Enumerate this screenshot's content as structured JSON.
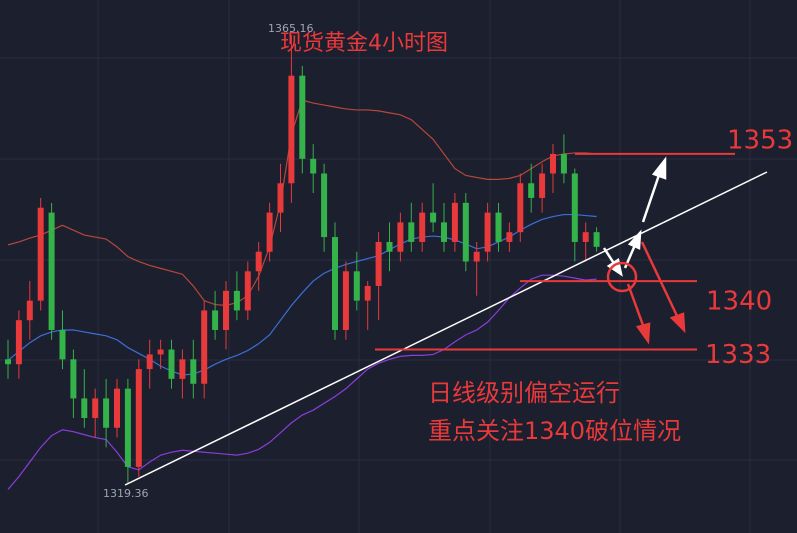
{
  "chart_data": {
    "type": "candlestick",
    "title": "现货黄金4小时图",
    "up_color": "#e8393b",
    "down_color": "#33b34a",
    "ylim": [
      1314.24,
      1368.74
    ],
    "open": [
      1332,
      1331.5,
      1336,
      1338,
      1347,
      1335,
      1332,
      1328,
      1326,
      1328,
      1325,
      1329,
      1321,
      1331,
      1332.5,
      1333,
      1330,
      1332,
      1329.5,
      1337,
      1335,
      1339,
      1337,
      1341,
      1343,
      1347,
      1350,
      1361,
      1352.5,
      1351,
      1344.5,
      1335,
      1341,
      1338,
      1339.5,
      1344,
      1343,
      1346,
      1344,
      1347,
      1346,
      1344,
      1348,
      1342,
      1343,
      1347,
      1344,
      1345,
      1350,
      1348.5,
      1351,
      1353,
      1351,
      1344,
      1345
    ],
    "high": [
      1334,
      1337,
      1340,
      1348.5,
      1348,
      1337,
      1333,
      1331,
      1329,
      1330,
      1330,
      1330,
      1332,
      1334,
      1334,
      1334,
      1333,
      1334,
      1338,
      1339,
      1340,
      1341,
      1342,
      1344,
      1348,
      1352,
      1365.16,
      1362,
      1354,
      1352,
      1346,
      1342,
      1343,
      1340,
      1345,
      1346,
      1347,
      1348,
      1348,
      1350,
      1348,
      1349,
      1349,
      1344,
      1348,
      1348,
      1346,
      1351,
      1352,
      1352,
      1354,
      1355,
      1351.5,
      1346,
      1345.5
    ],
    "low": [
      1330,
      1330,
      1334,
      1337,
      1334,
      1331,
      1326,
      1325,
      1324,
      1323,
      1324,
      1319.36,
      1320,
      1329,
      1331,
      1329,
      1328,
      1328,
      1328,
      1334,
      1333,
      1336,
      1336,
      1339,
      1342,
      1345,
      1348,
      1351,
      1349,
      1343,
      1334,
      1334,
      1337,
      1335,
      1336,
      1341,
      1342,
      1343,
      1343,
      1345,
      1343,
      1343,
      1341,
      1338.5,
      1342,
      1343,
      1343,
      1344,
      1347,
      1347,
      1349,
      1350,
      1342,
      1342,
      1343
    ],
    "close": [
      1331.5,
      1336,
      1338,
      1347.5,
      1335,
      1332,
      1328,
      1326,
      1328,
      1325,
      1329,
      1321,
      1331,
      1332.5,
      1333,
      1330,
      1332,
      1329.5,
      1337,
      1335,
      1339,
      1337,
      1341,
      1343,
      1347,
      1350,
      1361,
      1352.5,
      1351,
      1344.5,
      1335,
      1341,
      1338,
      1339.5,
      1344,
      1343,
      1346,
      1344,
      1347,
      1346,
      1344,
      1348,
      1342,
      1343,
      1347,
      1344,
      1345,
      1350,
      1348.5,
      1351,
      1353,
      1351,
      1344,
      1345,
      1343.5
    ],
    "bands": [
      {
        "color": "#b8473a",
        "values": [
          1343.7,
          1344.0,
          1344.4,
          1344.7,
          1345.2,
          1345.7,
          1345.2,
          1344.7,
          1344.5,
          1344.3,
          1343.5,
          1342.5,
          1342.0,
          1341.6,
          1341.3,
          1341.0,
          1340.7,
          1339.5,
          1338.0,
          1337.6,
          1337.5,
          1337.8,
          1338.5,
          1340.5,
          1343.5,
          1348.0,
          1355.0,
          1358.5,
          1358.2,
          1358.0,
          1357.8,
          1357.6,
          1357.5,
          1357.5,
          1357.4,
          1357.2,
          1357.0,
          1356.5,
          1355.5,
          1354.5,
          1353.0,
          1351.5,
          1350.8,
          1350.6,
          1350.4,
          1350.4,
          1350.5,
          1350.8,
          1351.5,
          1352.2,
          1352.8,
          1353.0,
          1353.1,
          1353.1,
          1353.0
        ]
      },
      {
        "color": "#3b6fd8",
        "values": [
          1331.9,
          1332.8,
          1333.7,
          1334.4,
          1334.8,
          1335.0,
          1335.0,
          1334.8,
          1334.6,
          1334.4,
          1334.0,
          1333.2,
          1332.6,
          1332.0,
          1331.3,
          1330.8,
          1330.4,
          1330.5,
          1330.9,
          1331.5,
          1332.0,
          1332.4,
          1332.9,
          1333.6,
          1334.5,
          1336.0,
          1337.5,
          1338.8,
          1340.0,
          1340.8,
          1341.3,
          1341.7,
          1342.0,
          1342.3,
          1342.6,
          1343.2,
          1343.8,
          1344.3,
          1344.5,
          1344.6,
          1344.5,
          1344.2,
          1343.8,
          1343.3,
          1343.5,
          1344.0,
          1344.5,
          1345.2,
          1345.8,
          1346.3,
          1346.6,
          1346.8,
          1346.8,
          1346.7,
          1346.6
        ]
      },
      {
        "color": "#8a3ddc",
        "values": [
          1318.7,
          1320.0,
          1321.5,
          1323.0,
          1324.2,
          1324.8,
          1324.6,
          1324.3,
          1324.0,
          1323.8,
          1322.5,
          1321.0,
          1320.7,
          1321.5,
          1322.2,
          1322.5,
          1322.7,
          1322.6,
          1322.5,
          1322.4,
          1322.3,
          1322.2,
          1322.4,
          1322.8,
          1323.5,
          1324.5,
          1325.5,
          1326.3,
          1326.8,
          1327.5,
          1328.2,
          1329.0,
          1330.0,
          1331.0,
          1331.6,
          1332.0,
          1332.3,
          1332.4,
          1332.4,
          1332.5,
          1333.0,
          1333.8,
          1334.5,
          1335.0,
          1335.8,
          1337.0,
          1338.3,
          1339.3,
          1340.2,
          1340.6,
          1340.6,
          1340.5,
          1340.3,
          1340.1,
          1340.2
        ]
      }
    ],
    "extremes": [
      1365.16,
      1319.36
    ],
    "levels": [
      1353,
      1340,
      1333
    ],
    "level_color": "#e8393b",
    "annotations": [
      "日线级别偏空运行",
      "重点关注1340破位情况"
    ]
  }
}
